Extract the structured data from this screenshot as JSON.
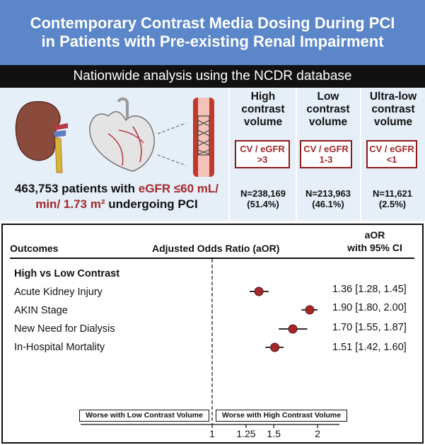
{
  "header": {
    "title": "Contemporary Contrast Media Dosing During PCI in Patients with Pre-existing Renal Impairment",
    "subtitle": "Nationwide analysis using the NCDR database"
  },
  "population": {
    "count_text": "463,753 patients with ",
    "criteria_red": "eGFR ≤60 mL/ min/ 1.73 m²",
    "suffix": " undergoing PCI"
  },
  "groups": [
    {
      "name": "High contrast volume",
      "ratio": "CV / eGFR >3",
      "n": "N=238,169",
      "pct": "(51.4%)"
    },
    {
      "name": "Low contrast volume",
      "ratio": "CV / eGFR 1-3",
      "n": "N=213,963",
      "pct": "(46.1%)"
    },
    {
      "name": "Ultra-low contrast volume",
      "ratio": "CV / eGFR <1",
      "n": "N=11,621",
      "pct": "(2.5%)"
    }
  ],
  "table": {
    "col_outcomes": "Outcomes",
    "col_aor": "Adjusted Odds Ratio (aOR)",
    "col_ci_line1": "aOR",
    "col_ci_line2": "with 95% CI",
    "section": "High vs Low Contrast"
  },
  "chart_data": {
    "type": "forest",
    "title": "Adjusted Odds Ratio (aOR)",
    "x_scale": "log",
    "xlim": [
      0.75,
      2.2
    ],
    "reference_line": 1,
    "ticks": [
      1,
      1.25,
      1.5,
      2
    ],
    "tick_labels": [
      "1",
      "1.25",
      "1.5",
      "2"
    ],
    "left_direction_label": "Worse with Low Contrast Volume",
    "right_direction_label": "Worse with High Contrast Volume",
    "point_color": "#a4292b",
    "rows": [
      {
        "label": "Acute Kidney Injury",
        "aor": 1.36,
        "lower": 1.28,
        "upper": 1.45,
        "ci_text": "1.36 [1.28,  1.45]"
      },
      {
        "label": "AKIN Stage",
        "aor": 1.9,
        "lower": 1.8,
        "upper": 2.0,
        "ci_text": "1.90 [1.80,  2.00]"
      },
      {
        "label": "New Need for Dialysis",
        "aor": 1.7,
        "lower": 1.55,
        "upper": 1.87,
        "ci_text": "1.70 [1.55,  1.87]"
      },
      {
        "label": "In-Hospital Mortality",
        "aor": 1.51,
        "lower": 1.42,
        "upper": 1.6,
        "ci_text": "1.51 [1.42,  1.60]"
      }
    ]
  }
}
